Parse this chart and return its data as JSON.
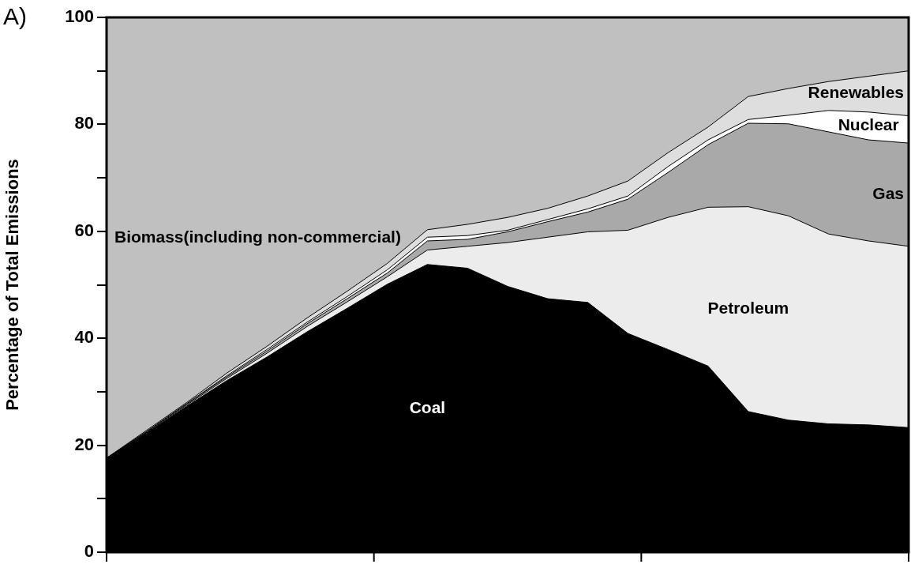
{
  "chart_data": {
    "type": "area",
    "ylabel": "Percentage of Total Emissions",
    "annotations": [
      "A)"
    ],
    "categories": [
      null,
      null,
      null,
      null,
      null,
      null,
      null,
      null,
      null,
      null,
      null,
      null,
      null,
      null,
      null,
      null,
      null,
      null,
      null,
      null,
      null
    ],
    "stacked": true,
    "ylim": [
      0,
      100
    ],
    "yticks": [
      0,
      {
        "value": 10,
        "label": null
      },
      20,
      {
        "value": 30,
        "label": null
      },
      40,
      {
        "value": 50,
        "label": null
      },
      60,
      {
        "value": 70,
        "label": null
      },
      80,
      {
        "value": 90,
        "label": null
      },
      100
    ],
    "grid": false,
    "tick_labels": "y",
    "series": [
      {
        "name": "Coal",
        "color": "#000000",
        "values": [
          17.6,
          22.3,
          27.3,
          32.1,
          36.5,
          41.2,
          45.6,
          50.1,
          53.8,
          53.1,
          49.7,
          47.4,
          46.7,
          40.9,
          37.9,
          34.8,
          26.3,
          24.7,
          24.0,
          23.8,
          23.3
        ]
      },
      {
        "name": "Petroleum",
        "color": "#ececec",
        "values": [
          0,
          0.1,
          0.2,
          0.4,
          0.7,
          1.0,
          1.2,
          1.4,
          2.7,
          4.1,
          8.2,
          11.5,
          13.2,
          19.3,
          24.7,
          29.7,
          38.3,
          38.2,
          35.5,
          34.4,
          33.9
        ]
      },
      {
        "name": "Gas",
        "color": "#a9a9a9",
        "values": [
          0,
          0.1,
          0.2,
          0.3,
          0.4,
          0.5,
          0.6,
          0.7,
          1.7,
          1.3,
          2.0,
          2.9,
          3.7,
          5.8,
          8.4,
          11.7,
          15.6,
          17.2,
          19.1,
          18.9,
          19.3
        ]
      },
      {
        "name": "Nuclear",
        "color": "#ffffff",
        "values": [
          0,
          0.1,
          0.1,
          0.2,
          0.3,
          0.3,
          0.4,
          0.6,
          0.7,
          0.7,
          0.3,
          0.4,
          0.6,
          0.6,
          1.1,
          0.9,
          0.7,
          1.6,
          4.0,
          5.2,
          5.1
        ]
      },
      {
        "name": "Renewables",
        "color": "#dedede",
        "values": [
          0,
          0.2,
          0.2,
          0.5,
          0.6,
          0.8,
          1.0,
          1.2,
          1.4,
          2.1,
          2.4,
          2.1,
          2.4,
          2.8,
          2.6,
          2.4,
          4.3,
          5.0,
          5.4,
          6.7,
          8.4
        ]
      },
      {
        "name": "Biomass(including non-commercial)",
        "color": "#c0c0c0",
        "values": [
          82.4,
          77.2,
          72.0,
          66.5,
          61.5,
          56.2,
          51.2,
          46.0,
          39.7,
          38.7,
          37.4,
          35.7,
          33.4,
          30.6,
          25.3,
          20.5,
          14.8,
          13.3,
          12.0,
          11.0,
          10.0
        ]
      }
    ]
  }
}
